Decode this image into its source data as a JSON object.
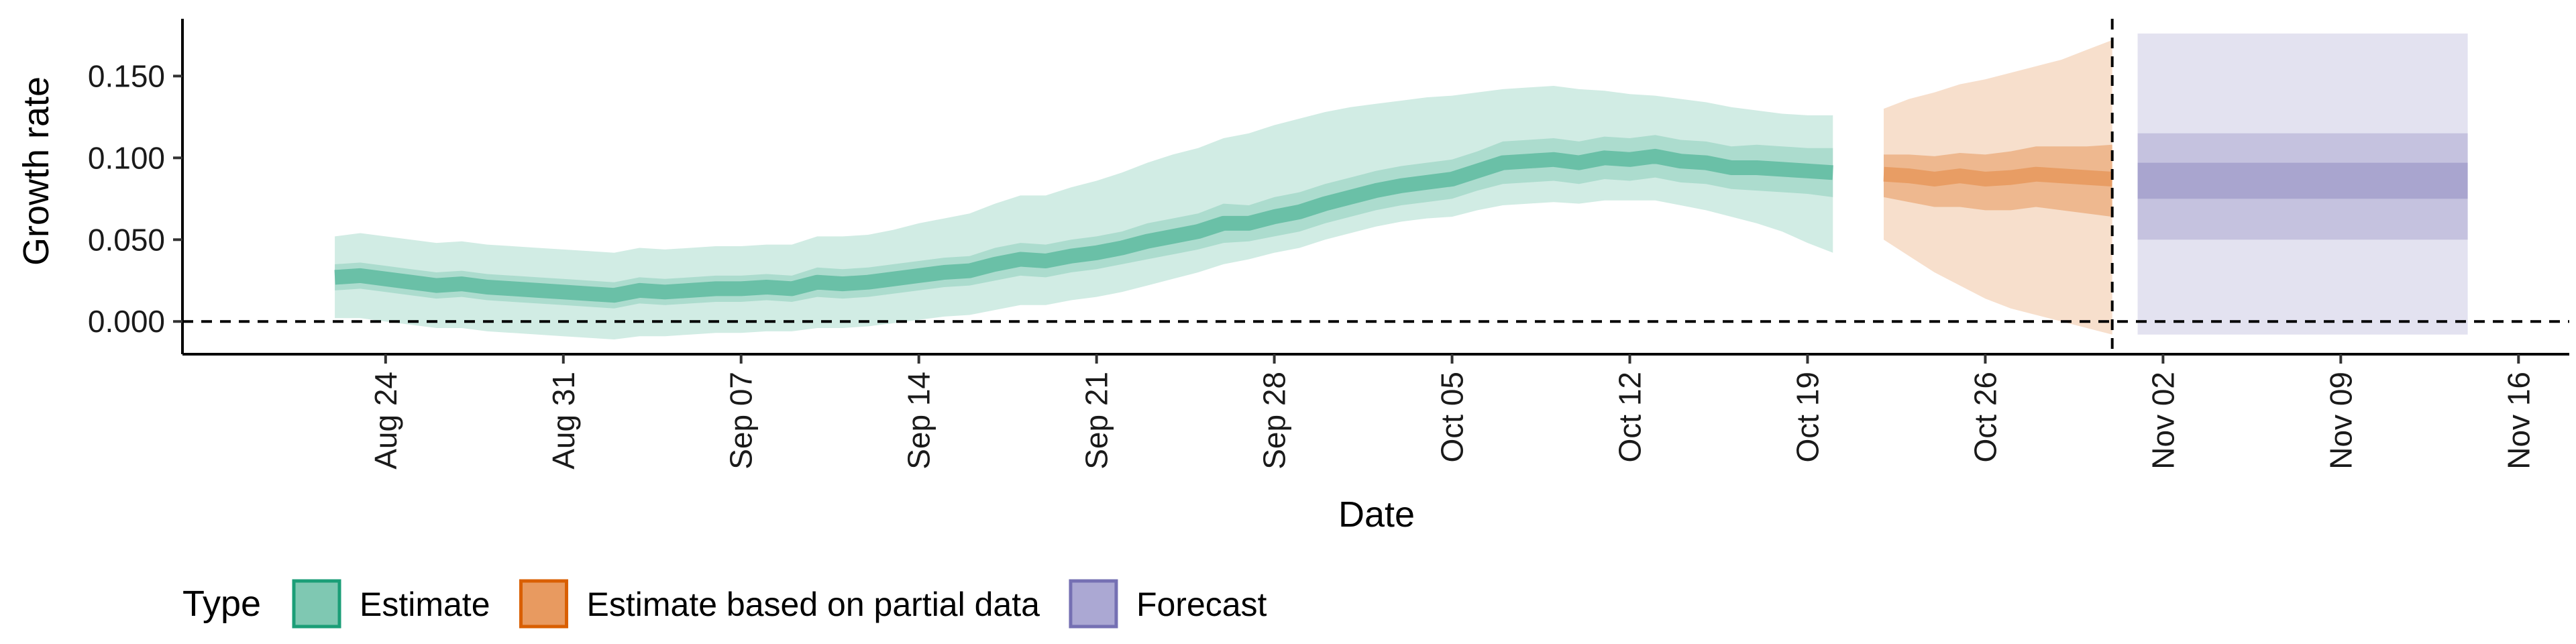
{
  "chart_data": {
    "type": "area",
    "xlabel": "Date",
    "ylabel": "Growth rate",
    "x_axis": {
      "type": "date",
      "range": [
        "2020-08-16",
        "2020-11-18"
      ],
      "ticks": [
        "2020-08-24",
        "2020-08-31",
        "2020-09-07",
        "2020-09-14",
        "2020-09-21",
        "2020-09-28",
        "2020-10-05",
        "2020-10-12",
        "2020-10-19",
        "2020-10-26",
        "2020-11-02",
        "2020-11-09",
        "2020-11-16"
      ],
      "tick_labels": [
        "Aug 24",
        "Aug 31",
        "Sep 07",
        "Sep 14",
        "Sep 21",
        "Sep 28",
        "Oct 05",
        "Oct 12",
        "Oct 19",
        "Oct 26",
        "Nov 02",
        "Nov 09",
        "Nov 16"
      ]
    },
    "y_axis": {
      "range": [
        -0.02,
        0.185
      ],
      "ticks": [
        0.0,
        0.05,
        0.1,
        0.15
      ],
      "tick_labels": [
        "0.000",
        "0.050",
        "0.100",
        "0.150"
      ]
    },
    "reference_lines": [
      {
        "orientation": "horizontal",
        "value": 0.0,
        "style": "dashed"
      },
      {
        "orientation": "vertical",
        "value": "2020-10-31",
        "style": "dashed"
      }
    ],
    "grid": false,
    "legend": {
      "title": "Type",
      "placement": "bottom-left"
    },
    "series": [
      {
        "name": "Estimate",
        "color": "#1b9e77",
        "x": [
          "2020-08-22",
          "2020-08-23",
          "2020-08-24",
          "2020-08-25",
          "2020-08-26",
          "2020-08-27",
          "2020-08-28",
          "2020-08-29",
          "2020-08-30",
          "2020-08-31",
          "2020-09-01",
          "2020-09-02",
          "2020-09-03",
          "2020-09-04",
          "2020-09-05",
          "2020-09-06",
          "2020-09-07",
          "2020-09-08",
          "2020-09-09",
          "2020-09-10",
          "2020-09-11",
          "2020-09-12",
          "2020-09-13",
          "2020-09-14",
          "2020-09-15",
          "2020-09-16",
          "2020-09-17",
          "2020-09-18",
          "2020-09-19",
          "2020-09-20",
          "2020-09-21",
          "2020-09-22",
          "2020-09-23",
          "2020-09-24",
          "2020-09-25",
          "2020-09-26",
          "2020-09-27",
          "2020-09-28",
          "2020-09-29",
          "2020-09-30",
          "2020-10-01",
          "2020-10-02",
          "2020-10-03",
          "2020-10-04",
          "2020-10-05",
          "2020-10-06",
          "2020-10-07",
          "2020-10-08",
          "2020-10-09",
          "2020-10-10",
          "2020-10-11",
          "2020-10-12",
          "2020-10-13",
          "2020-10-14",
          "2020-10-15",
          "2020-10-16",
          "2020-10-17",
          "2020-10-18",
          "2020-10-19",
          "2020-10-20"
        ],
        "median": [
          0.027,
          0.028,
          0.026,
          0.024,
          0.022,
          0.023,
          0.021,
          0.02,
          0.019,
          0.018,
          0.017,
          0.016,
          0.019,
          0.018,
          0.019,
          0.02,
          0.02,
          0.021,
          0.02,
          0.024,
          0.023,
          0.024,
          0.026,
          0.028,
          0.03,
          0.031,
          0.035,
          0.038,
          0.037,
          0.04,
          0.042,
          0.045,
          0.049,
          0.052,
          0.055,
          0.06,
          0.06,
          0.064,
          0.067,
          0.072,
          0.076,
          0.08,
          0.083,
          0.085,
          0.087,
          0.092,
          0.097,
          0.098,
          0.099,
          0.097,
          0.1,
          0.099,
          0.101,
          0.098,
          0.097,
          0.094,
          0.094,
          0.093,
          0.092,
          0.091
        ],
        "ci50_low": [
          0.019,
          0.02,
          0.018,
          0.016,
          0.014,
          0.015,
          0.013,
          0.012,
          0.011,
          0.01,
          0.009,
          0.008,
          0.011,
          0.01,
          0.011,
          0.012,
          0.012,
          0.013,
          0.012,
          0.015,
          0.014,
          0.015,
          0.017,
          0.019,
          0.021,
          0.022,
          0.025,
          0.028,
          0.027,
          0.03,
          0.032,
          0.035,
          0.038,
          0.041,
          0.044,
          0.048,
          0.049,
          0.052,
          0.055,
          0.06,
          0.064,
          0.068,
          0.071,
          0.073,
          0.075,
          0.08,
          0.084,
          0.085,
          0.086,
          0.084,
          0.087,
          0.086,
          0.088,
          0.085,
          0.084,
          0.081,
          0.08,
          0.079,
          0.078,
          0.076
        ],
        "ci50_high": [
          0.035,
          0.036,
          0.034,
          0.032,
          0.03,
          0.031,
          0.029,
          0.028,
          0.027,
          0.026,
          0.025,
          0.024,
          0.027,
          0.026,
          0.027,
          0.028,
          0.028,
          0.029,
          0.028,
          0.033,
          0.032,
          0.033,
          0.035,
          0.037,
          0.039,
          0.04,
          0.045,
          0.048,
          0.047,
          0.05,
          0.052,
          0.055,
          0.06,
          0.063,
          0.066,
          0.072,
          0.071,
          0.076,
          0.079,
          0.084,
          0.088,
          0.092,
          0.095,
          0.097,
          0.099,
          0.104,
          0.11,
          0.111,
          0.112,
          0.11,
          0.113,
          0.112,
          0.114,
          0.111,
          0.11,
          0.107,
          0.108,
          0.107,
          0.106,
          0.106
        ],
        "ci90_low": [
          0.002,
          0.002,
          0.0,
          -0.002,
          -0.004,
          -0.004,
          -0.006,
          -0.007,
          -0.008,
          -0.009,
          -0.01,
          -0.011,
          -0.009,
          -0.009,
          -0.008,
          -0.007,
          -0.007,
          -0.006,
          -0.006,
          -0.004,
          -0.004,
          -0.003,
          -0.001,
          0.001,
          0.003,
          0.004,
          0.007,
          0.01,
          0.01,
          0.013,
          0.015,
          0.018,
          0.022,
          0.026,
          0.03,
          0.035,
          0.038,
          0.042,
          0.045,
          0.05,
          0.054,
          0.058,
          0.061,
          0.063,
          0.064,
          0.068,
          0.071,
          0.072,
          0.073,
          0.072,
          0.074,
          0.074,
          0.074,
          0.071,
          0.068,
          0.064,
          0.06,
          0.055,
          0.048,
          0.042
        ],
        "ci90_high": [
          0.052,
          0.054,
          0.052,
          0.05,
          0.048,
          0.049,
          0.047,
          0.046,
          0.045,
          0.044,
          0.043,
          0.042,
          0.045,
          0.044,
          0.045,
          0.046,
          0.046,
          0.047,
          0.047,
          0.052,
          0.052,
          0.053,
          0.056,
          0.06,
          0.063,
          0.066,
          0.072,
          0.077,
          0.077,
          0.082,
          0.086,
          0.091,
          0.097,
          0.102,
          0.106,
          0.112,
          0.115,
          0.12,
          0.124,
          0.128,
          0.131,
          0.133,
          0.135,
          0.137,
          0.138,
          0.14,
          0.142,
          0.143,
          0.144,
          0.142,
          0.141,
          0.139,
          0.138,
          0.136,
          0.134,
          0.131,
          0.129,
          0.127,
          0.126,
          0.126
        ]
      },
      {
        "name": "Estimate based on partial data",
        "color": "#d95f02",
        "x": [
          "2020-10-22",
          "2020-10-23",
          "2020-10-24",
          "2020-10-25",
          "2020-10-26",
          "2020-10-27",
          "2020-10-28",
          "2020-10-29",
          "2020-10-30",
          "2020-10-31"
        ],
        "median": [
          0.09,
          0.089,
          0.087,
          0.089,
          0.087,
          0.088,
          0.09,
          0.089,
          0.088,
          0.087
        ],
        "ci50_low": [
          0.076,
          0.073,
          0.07,
          0.07,
          0.068,
          0.068,
          0.07,
          0.068,
          0.066,
          0.064
        ],
        "ci50_high": [
          0.102,
          0.102,
          0.101,
          0.103,
          0.102,
          0.104,
          0.107,
          0.107,
          0.107,
          0.108
        ],
        "ci90_low": [
          0.05,
          0.04,
          0.03,
          0.022,
          0.014,
          0.008,
          0.004,
          0.0,
          -0.004,
          -0.008
        ],
        "ci90_high": [
          0.13,
          0.136,
          0.14,
          0.145,
          0.148,
          0.152,
          0.156,
          0.16,
          0.166,
          0.172
        ]
      },
      {
        "name": "Forecast",
        "color": "#7570b3",
        "x": [
          "2020-11-01",
          "2020-11-14"
        ],
        "median": [
          0.086,
          0.086
        ],
        "ci30_low": [
          0.075,
          0.075
        ],
        "ci30_high": [
          0.097,
          0.097
        ],
        "ci60_low": [
          0.05,
          0.05
        ],
        "ci60_high": [
          0.115,
          0.115
        ],
        "ci90_low": [
          -0.008,
          -0.008
        ],
        "ci90_high": [
          0.176,
          0.176
        ]
      }
    ]
  }
}
